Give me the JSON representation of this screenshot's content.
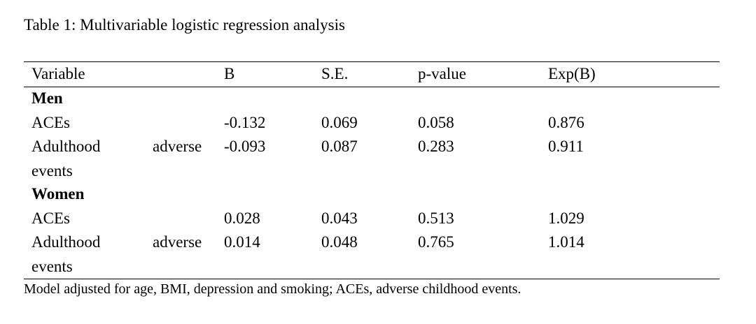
{
  "caption": "Table 1: Multivariable logistic regression analysis",
  "table": {
    "headers": {
      "variable": "Variable",
      "b": "B",
      "se": "S.E.",
      "p": "p-value",
      "expb": "Exp(B)"
    },
    "groups": [
      {
        "label": "Men",
        "rows": [
          {
            "variable": "ACEs",
            "b": "-0.132",
            "se": "0.069",
            "p": "0.058",
            "expb": "0.876"
          },
          {
            "variable_line1_a": "Adulthood",
            "variable_line1_b": "adverse",
            "variable_line2": "events",
            "b": "-0.093",
            "se": "0.087",
            "p": "0.283",
            "expb": "0.911"
          }
        ]
      },
      {
        "label": "Women",
        "rows": [
          {
            "variable": "ACEs",
            "b": "0.028",
            "se": "0.043",
            "p": "0.513",
            "expb": "1.029"
          },
          {
            "variable_line1_a": "Adulthood",
            "variable_line1_b": "adverse",
            "variable_line2": "events",
            "b": "0.014",
            "se": "0.048",
            "p": "0.765",
            "expb": "1.014"
          }
        ]
      }
    ]
  },
  "note": "Model adjusted for age, BMI, depression and smoking; ACEs, adverse childhood events."
}
